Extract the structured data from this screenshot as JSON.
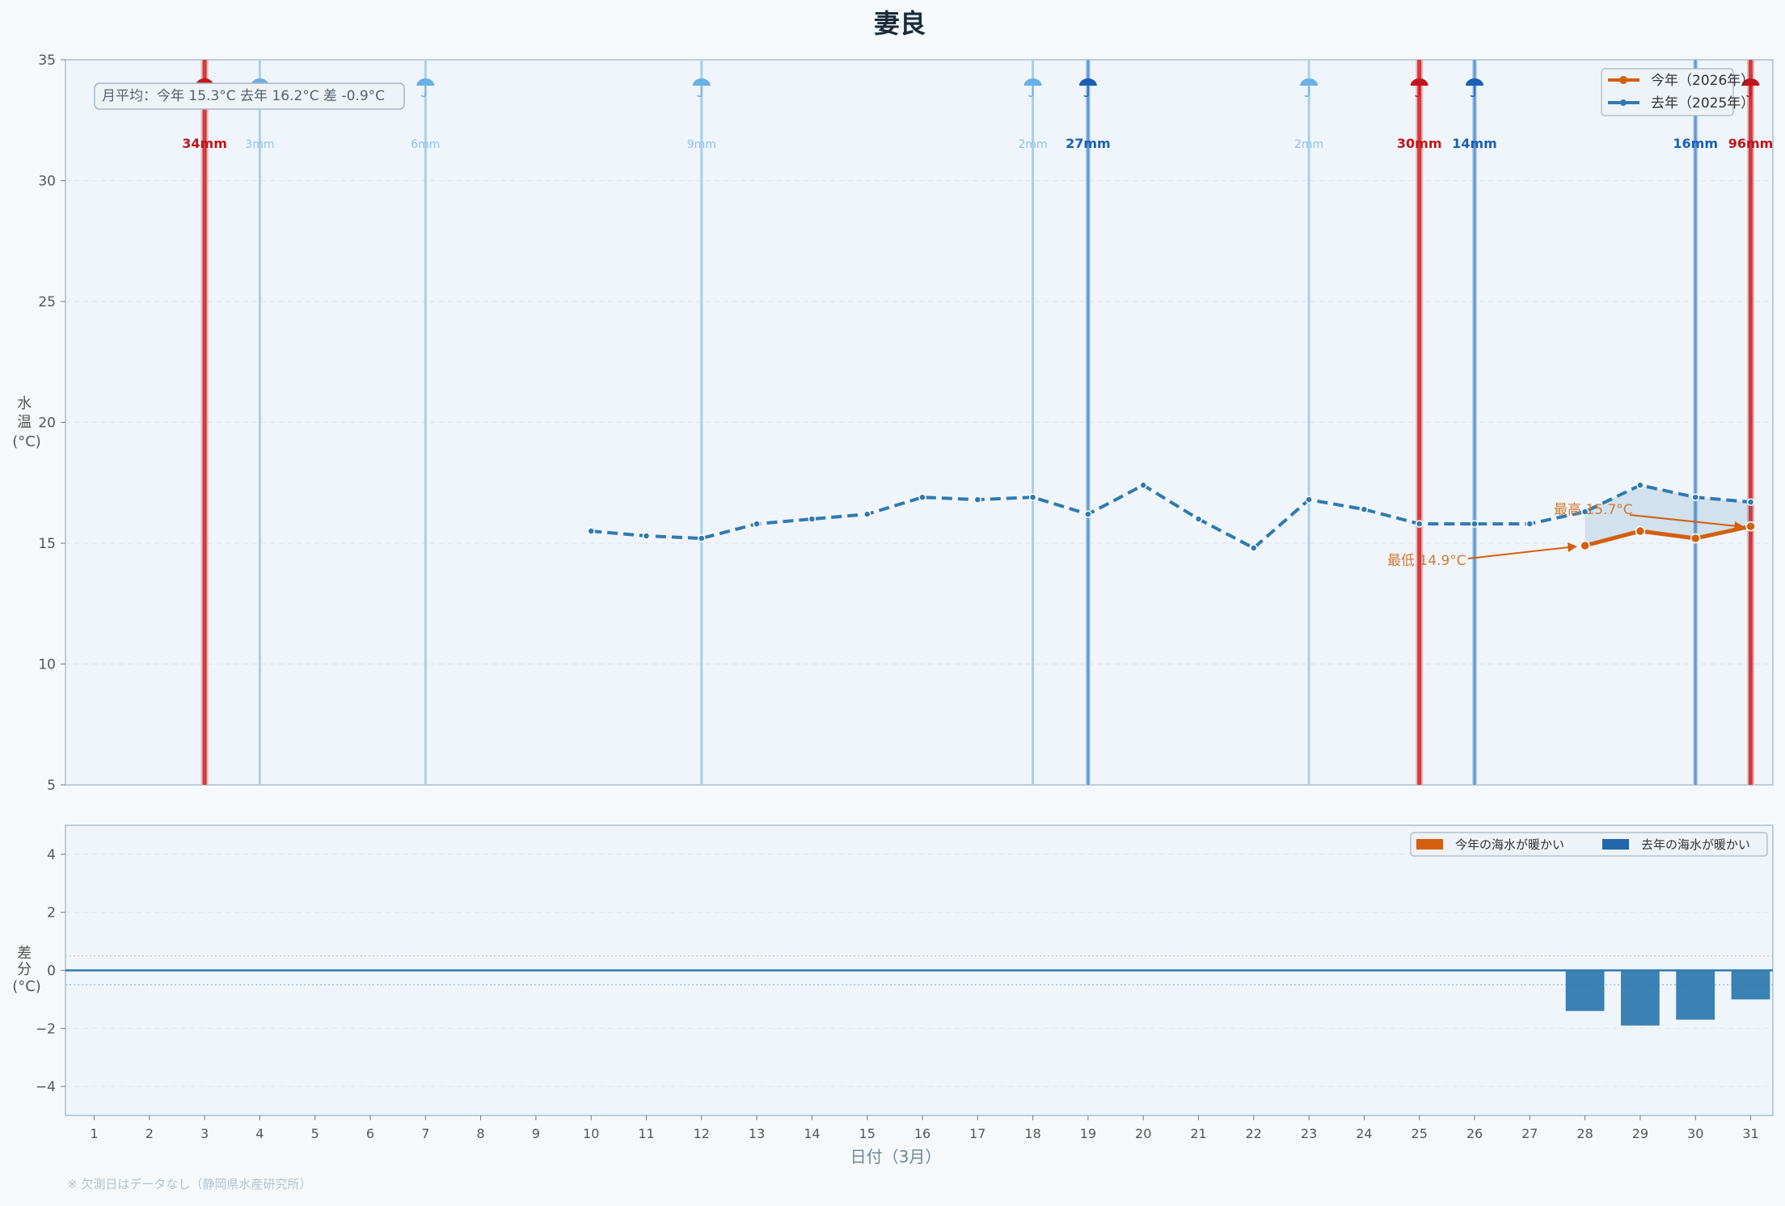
{
  "title": "妻良",
  "footnote": "※ 欠測日はデータなし（静岡県水産研究所）",
  "summary": "月平均：今年 15.3°C  去年 16.2°C  差 -0.9°C",
  "colors": {
    "this_year": "#d45f0e",
    "last_year": "#2f7ab0",
    "rain_heavy": "#c0151a",
    "rain_medium": "#2a6fc0",
    "rain_light": "#a8d0ee",
    "title": "#1b2a3a",
    "axis_text": "#555555",
    "frame": "#a9bfcc"
  },
  "legend_top": {
    "this_year": "今年（2026年）",
    "last_year": "去年（2025年）"
  },
  "legend_bottom": {
    "warmer_this_year": "今年の海水が暖かい",
    "warmer_last_year": "去年の海水が暖かい"
  },
  "annotations": {
    "max": "最高 15.7°C",
    "min": "最低 14.9°C"
  },
  "chart_data": [
    {
      "type": "line",
      "title": "妻良",
      "ylabel": "水温(°C)",
      "xlabel": "日付（3月）",
      "ylim": [
        5,
        35
      ],
      "yticks": [
        5,
        10,
        15,
        20,
        25,
        30,
        35
      ],
      "x": [
        1,
        2,
        3,
        4,
        5,
        6,
        7,
        8,
        9,
        10,
        11,
        12,
        13,
        14,
        15,
        16,
        17,
        18,
        19,
        20,
        21,
        22,
        23,
        24,
        25,
        26,
        27,
        28,
        29,
        30,
        31
      ],
      "grid": true,
      "legend": "top-right",
      "series": [
        {
          "name": "今年（2026年）",
          "values": [
            null,
            null,
            null,
            null,
            null,
            null,
            null,
            null,
            null,
            null,
            null,
            null,
            null,
            null,
            null,
            null,
            null,
            null,
            null,
            null,
            null,
            null,
            null,
            null,
            null,
            null,
            null,
            14.9,
            15.5,
            15.2,
            15.7
          ]
        },
        {
          "name": "去年（2025年）",
          "values": [
            null,
            null,
            null,
            null,
            null,
            null,
            null,
            null,
            null,
            15.5,
            15.3,
            15.2,
            15.8,
            16.0,
            16.2,
            16.9,
            16.8,
            16.9,
            16.2,
            17.4,
            16.0,
            14.8,
            16.8,
            16.4,
            15.8,
            15.8,
            15.8,
            16.3,
            17.4,
            16.9,
            16.7
          ]
        }
      ],
      "rain": [
        {
          "day": 3,
          "mm": 34,
          "label": "34mm",
          "level": "heavy"
        },
        {
          "day": 4,
          "mm": 3,
          "label": "3mm",
          "level": "light"
        },
        {
          "day": 7,
          "mm": 6,
          "label": "6mm",
          "level": "light"
        },
        {
          "day": 12,
          "mm": 9,
          "label": "9mm",
          "level": "light"
        },
        {
          "day": 18,
          "mm": 2,
          "label": "2mm",
          "level": "light"
        },
        {
          "day": 19,
          "mm": 27,
          "label": "27mm",
          "level": "medium"
        },
        {
          "day": 23,
          "mm": 2,
          "label": "2mm",
          "level": "light"
        },
        {
          "day": 25,
          "mm": 30,
          "label": "30mm",
          "level": "heavy"
        },
        {
          "day": 26,
          "mm": 14,
          "label": "14mm",
          "level": "medium"
        },
        {
          "day": 30,
          "mm": 16,
          "label": "16mm",
          "level": "medium"
        },
        {
          "day": 31,
          "mm": 96,
          "label": "96mm",
          "level": "heavy"
        }
      ]
    },
    {
      "type": "bar",
      "ylabel": "差分(°C)",
      "xlabel": "日付（3月）",
      "ylim": [
        -5,
        5
      ],
      "yticks": [
        -4,
        -2,
        0,
        2,
        4
      ],
      "ytick_labels": [
        "−4",
        "−2",
        "0",
        "2",
        "4"
      ],
      "categories": [
        1,
        2,
        3,
        4,
        5,
        6,
        7,
        8,
        9,
        10,
        11,
        12,
        13,
        14,
        15,
        16,
        17,
        18,
        19,
        20,
        21,
        22,
        23,
        24,
        25,
        26,
        27,
        28,
        29,
        30,
        31
      ],
      "values": [
        null,
        null,
        null,
        null,
        null,
        null,
        null,
        null,
        null,
        null,
        null,
        null,
        null,
        null,
        null,
        null,
        null,
        null,
        null,
        null,
        null,
        null,
        null,
        null,
        null,
        null,
        null,
        -1.4,
        -1.9,
        -1.7,
        -1.0
      ],
      "reference_lines": [
        0.5,
        -0.5
      ],
      "legend": "top-right"
    }
  ]
}
